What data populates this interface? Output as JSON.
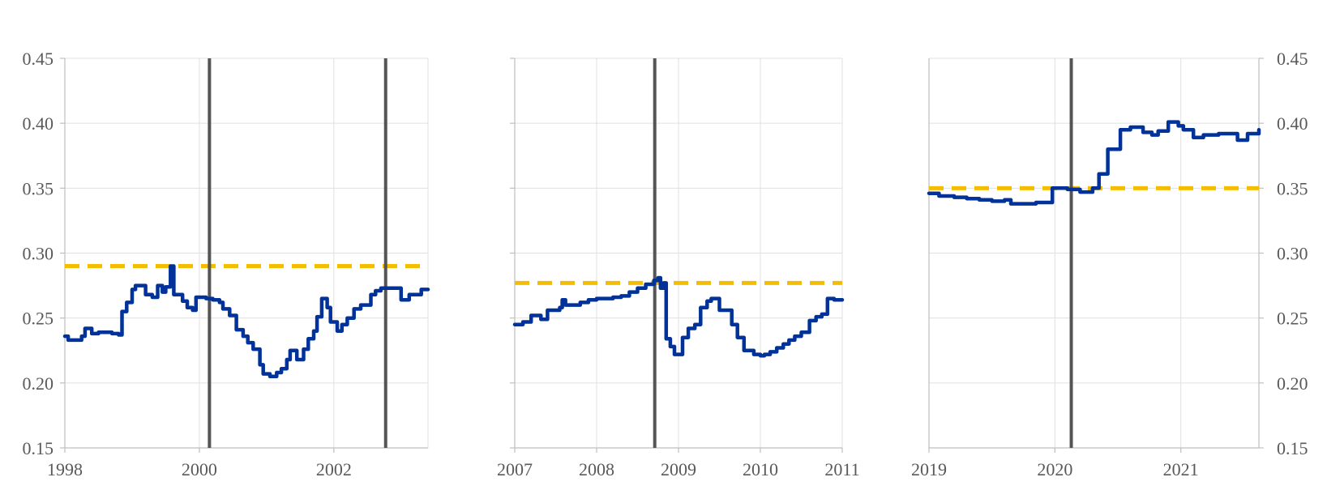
{
  "chart_data": [
    {
      "type": "line",
      "panel": "left",
      "x_ticks": [
        1998,
        2000,
        2002
      ],
      "x_range": [
        1998,
        2003.4
      ],
      "ylim": [
        0.15,
        0.45
      ],
      "y_ticks": [
        "0.45",
        "0.40",
        "0.35",
        "0.30",
        "0.25",
        "0.20",
        "0.15"
      ],
      "y_axis_side": "left",
      "grid": true,
      "reference_line": {
        "value": 0.29,
        "style": "dashed",
        "color": "#F5BD00"
      },
      "event_lines": [
        2000.15,
        2002.77
      ],
      "series": [
        {
          "color": "#003299",
          "step": true,
          "points": [
            [
              1998.0,
              0.236
            ],
            [
              1998.05,
              0.233
            ],
            [
              1998.25,
              0.236
            ],
            [
              1998.3,
              0.242
            ],
            [
              1998.4,
              0.238
            ],
            [
              1998.5,
              0.239
            ],
            [
              1998.7,
              0.238
            ],
            [
              1998.8,
              0.237
            ],
            [
              1998.85,
              0.255
            ],
            [
              1998.92,
              0.262
            ],
            [
              1999.0,
              0.272
            ],
            [
              1999.05,
              0.275
            ],
            [
              1999.2,
              0.268
            ],
            [
              1999.3,
              0.266
            ],
            [
              1999.38,
              0.275
            ],
            [
              1999.45,
              0.27
            ],
            [
              1999.5,
              0.274
            ],
            [
              1999.57,
              0.29
            ],
            [
              1999.62,
              0.268
            ],
            [
              1999.75,
              0.263
            ],
            [
              1999.82,
              0.258
            ],
            [
              1999.9,
              0.256
            ],
            [
              1999.95,
              0.266
            ],
            [
              2000.1,
              0.265
            ],
            [
              2000.2,
              0.264
            ],
            [
              2000.3,
              0.262
            ],
            [
              2000.35,
              0.257
            ],
            [
              2000.45,
              0.252
            ],
            [
              2000.55,
              0.241
            ],
            [
              2000.65,
              0.236
            ],
            [
              2000.72,
              0.231
            ],
            [
              2000.8,
              0.226
            ],
            [
              2000.9,
              0.214
            ],
            [
              2000.95,
              0.207
            ],
            [
              2001.05,
              0.205
            ],
            [
              2001.15,
              0.208
            ],
            [
              2001.22,
              0.211
            ],
            [
              2001.3,
              0.218
            ],
            [
              2001.35,
              0.225
            ],
            [
              2001.45,
              0.218
            ],
            [
              2001.55,
              0.226
            ],
            [
              2001.62,
              0.234
            ],
            [
              2001.7,
              0.24
            ],
            [
              2001.75,
              0.251
            ],
            [
              2001.82,
              0.265
            ],
            [
              2001.9,
              0.258
            ],
            [
              2001.95,
              0.247
            ],
            [
              2002.05,
              0.24
            ],
            [
              2002.12,
              0.245
            ],
            [
              2002.2,
              0.25
            ],
            [
              2002.3,
              0.257
            ],
            [
              2002.4,
              0.26
            ],
            [
              2002.55,
              0.268
            ],
            [
              2002.62,
              0.271
            ],
            [
              2002.7,
              0.273
            ],
            [
              2003.0,
              0.264
            ],
            [
              2003.12,
              0.268
            ],
            [
              2003.3,
              0.272
            ],
            [
              2003.4,
              0.272
            ]
          ]
        }
      ]
    },
    {
      "type": "line",
      "panel": "middle",
      "x_ticks": [
        2007,
        2008,
        2009,
        2010,
        2011
      ],
      "x_range": [
        2007,
        2011
      ],
      "ylim": [
        0.15,
        0.45
      ],
      "grid": true,
      "reference_line": {
        "value": 0.277,
        "style": "dashed",
        "color": "#F5BD00"
      },
      "event_lines": [
        2008.71
      ],
      "series": [
        {
          "color": "#003299",
          "step": true,
          "points": [
            [
              2007.0,
              0.245
            ],
            [
              2007.1,
              0.247
            ],
            [
              2007.2,
              0.252
            ],
            [
              2007.32,
              0.249
            ],
            [
              2007.4,
              0.256
            ],
            [
              2007.55,
              0.258
            ],
            [
              2007.58,
              0.264
            ],
            [
              2007.62,
              0.26
            ],
            [
              2007.8,
              0.262
            ],
            [
              2007.9,
              0.264
            ],
            [
              2008.0,
              0.265
            ],
            [
              2008.2,
              0.266
            ],
            [
              2008.3,
              0.267
            ],
            [
              2008.4,
              0.27
            ],
            [
              2008.5,
              0.273
            ],
            [
              2008.6,
              0.276
            ],
            [
              2008.7,
              0.279
            ],
            [
              2008.75,
              0.281
            ],
            [
              2008.78,
              0.273
            ],
            [
              2008.82,
              0.277
            ],
            [
              2008.85,
              0.234
            ],
            [
              2008.9,
              0.228
            ],
            [
              2008.95,
              0.222
            ],
            [
              2009.05,
              0.235
            ],
            [
              2009.12,
              0.242
            ],
            [
              2009.2,
              0.245
            ],
            [
              2009.27,
              0.258
            ],
            [
              2009.35,
              0.263
            ],
            [
              2009.4,
              0.265
            ],
            [
              2009.5,
              0.256
            ],
            [
              2009.65,
              0.245
            ],
            [
              2009.72,
              0.235
            ],
            [
              2009.8,
              0.225
            ],
            [
              2009.92,
              0.222
            ],
            [
              2010.0,
              0.221
            ],
            [
              2010.05,
              0.222
            ],
            [
              2010.12,
              0.224
            ],
            [
              2010.2,
              0.227
            ],
            [
              2010.28,
              0.23
            ],
            [
              2010.35,
              0.233
            ],
            [
              2010.42,
              0.236
            ],
            [
              2010.5,
              0.239
            ],
            [
              2010.6,
              0.248
            ],
            [
              2010.68,
              0.251
            ],
            [
              2010.75,
              0.253
            ],
            [
              2010.82,
              0.265
            ],
            [
              2010.9,
              0.264
            ],
            [
              2011.0,
              0.264
            ]
          ]
        }
      ]
    },
    {
      "type": "line",
      "panel": "right",
      "x_ticks": [
        2019,
        2020,
        2021
      ],
      "x_range": [
        2019,
        2021.62
      ],
      "ylim": [
        0.15,
        0.45
      ],
      "y_ticks": [
        "0.45",
        "0.40",
        "0.35",
        "0.30",
        "0.25",
        "0.20",
        "0.15"
      ],
      "y_axis_side": "right",
      "grid": true,
      "reference_line": {
        "value": 0.35,
        "style": "dashed",
        "color": "#F5BD00"
      },
      "event_lines": [
        2020.13
      ],
      "series": [
        {
          "color": "#003299",
          "step": true,
          "points": [
            [
              2019.0,
              0.346
            ],
            [
              2019.08,
              0.344
            ],
            [
              2019.2,
              0.343
            ],
            [
              2019.3,
              0.342
            ],
            [
              2019.4,
              0.341
            ],
            [
              2019.5,
              0.34
            ],
            [
              2019.6,
              0.341
            ],
            [
              2019.65,
              0.338
            ],
            [
              2019.75,
              0.338
            ],
            [
              2019.85,
              0.339
            ],
            [
              2019.98,
              0.35
            ],
            [
              2020.1,
              0.349
            ],
            [
              2020.2,
              0.347
            ],
            [
              2020.3,
              0.35
            ],
            [
              2020.35,
              0.361
            ],
            [
              2020.42,
              0.38
            ],
            [
              2020.52,
              0.395
            ],
            [
              2020.6,
              0.397
            ],
            [
              2020.7,
              0.393
            ],
            [
              2020.77,
              0.391
            ],
            [
              2020.82,
              0.394
            ],
            [
              2020.9,
              0.401
            ],
            [
              2020.98,
              0.398
            ],
            [
              2021.02,
              0.395
            ],
            [
              2021.1,
              0.389
            ],
            [
              2021.18,
              0.391
            ],
            [
              2021.3,
              0.392
            ],
            [
              2021.45,
              0.387
            ],
            [
              2021.53,
              0.392
            ],
            [
              2021.62,
              0.395
            ]
          ]
        }
      ]
    }
  ]
}
